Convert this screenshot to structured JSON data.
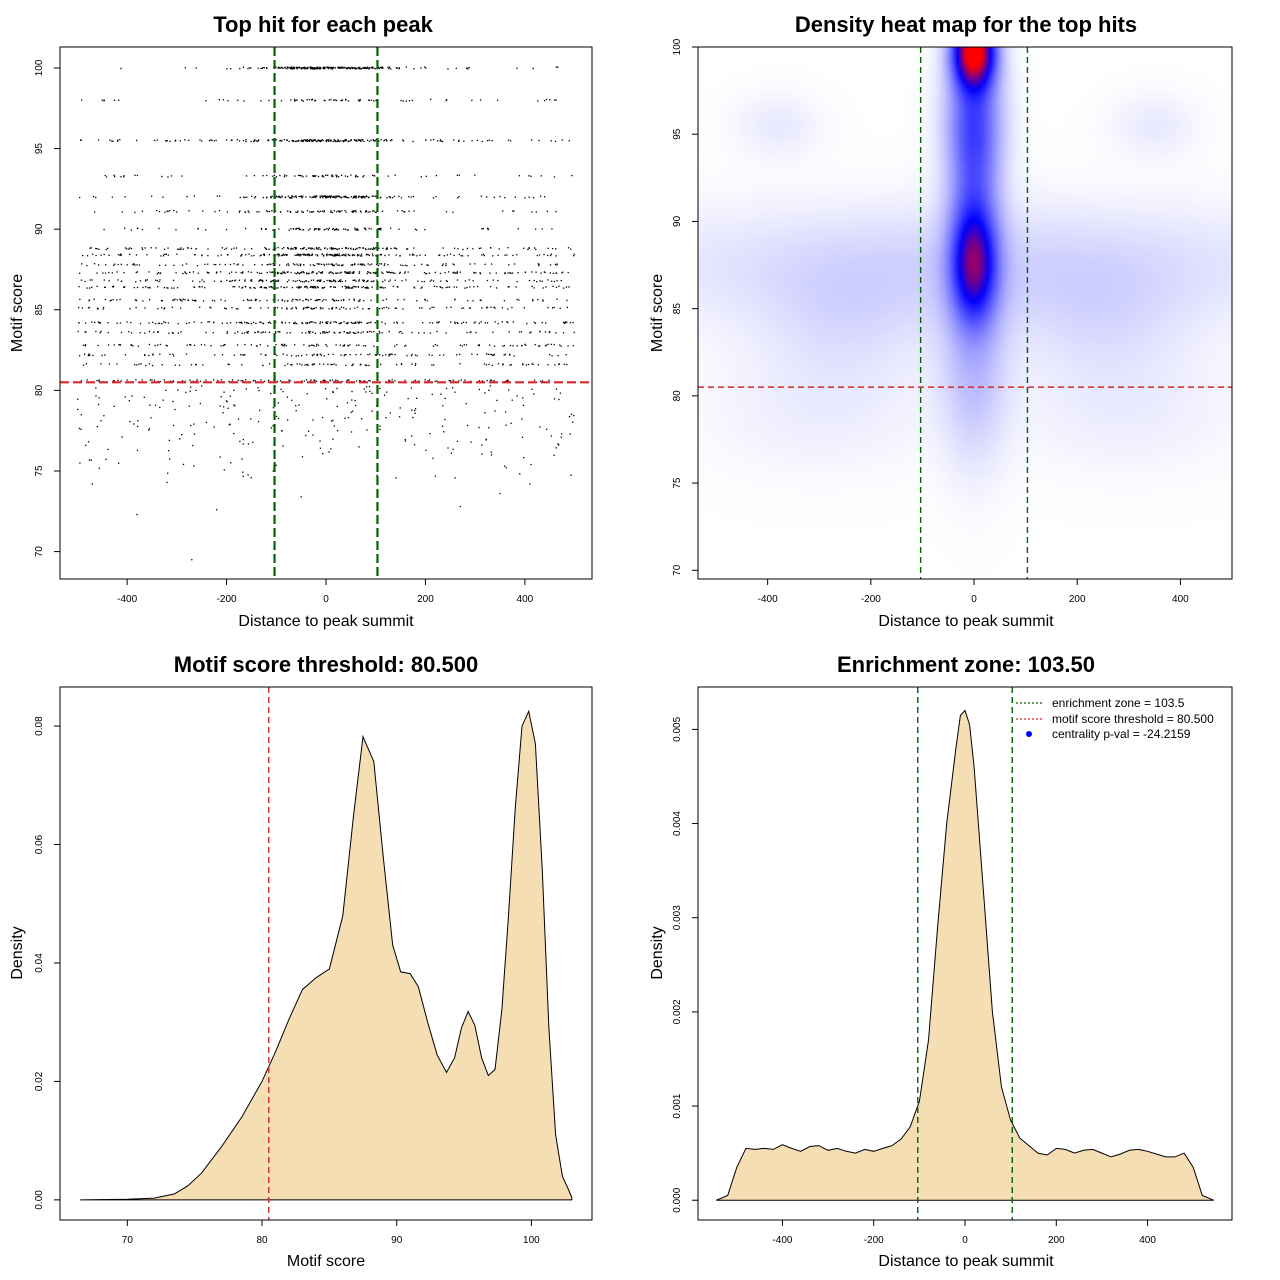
{
  "colors": {
    "threshold": "#d62728",
    "zone": "#006400",
    "fill": "#f5deb3",
    "points": "#000000",
    "pval_dot": "#0000ff"
  },
  "chart_data": [
    {
      "id": "top-hits",
      "type": "scatter",
      "title": "Top hit for each peak",
      "xlabel": "Distance to peak summit",
      "ylabel": "Motif score",
      "xlim": [
        -535,
        535
      ],
      "ylim": [
        68.3,
        101.3
      ],
      "xticks": [
        -400,
        -200,
        0,
        200,
        400
      ],
      "yticks": [
        70,
        75,
        80,
        85,
        90,
        95,
        100
      ],
      "score_levels": [
        {
          "score": 100,
          "n": 230,
          "center": 0.9
        },
        {
          "score": 98.0,
          "n": 70,
          "center": 0.6
        },
        {
          "score": 95.5,
          "n": 210,
          "center": 0.7
        },
        {
          "score": 93.3,
          "n": 80,
          "center": 0.6
        },
        {
          "score": 92.0,
          "n": 180,
          "center": 0.8
        },
        {
          "score": 91.1,
          "n": 100,
          "center": 0.5
        },
        {
          "score": 90.0,
          "n": 90,
          "center": 0.7
        },
        {
          "score": 88.8,
          "n": 160,
          "center": 0.5
        },
        {
          "score": 88.4,
          "n": 190,
          "center": 0.5
        },
        {
          "score": 87.8,
          "n": 130,
          "center": 0.4
        },
        {
          "score": 87.3,
          "n": 180,
          "center": 0.4
        },
        {
          "score": 86.8,
          "n": 150,
          "center": 0.4
        },
        {
          "score": 86.4,
          "n": 170,
          "center": 0.4
        },
        {
          "score": 85.6,
          "n": 120,
          "center": 0.3
        },
        {
          "score": 85.1,
          "n": 110,
          "center": 0.3
        },
        {
          "score": 84.2,
          "n": 160,
          "center": 0.3
        },
        {
          "score": 83.6,
          "n": 120,
          "center": 0.3
        },
        {
          "score": 82.8,
          "n": 110,
          "center": 0.2
        },
        {
          "score": 82.2,
          "n": 100,
          "center": 0.2
        },
        {
          "score": 81.6,
          "n": 90,
          "center": 0.2
        },
        {
          "score": 80.6,
          "n": 120,
          "center": 0.2
        }
      ],
      "scattered_below_threshold": {
        "n": 260,
        "score_range": [
          74.5,
          80.3
        ]
      },
      "outliers": [
        [
          -470,
          74.2
        ],
        [
          -380,
          72.3
        ],
        [
          -270,
          69.5
        ],
        [
          -220,
          72.6
        ],
        [
          -320,
          74.3
        ],
        [
          -50,
          73.4
        ],
        [
          270,
          72.8
        ],
        [
          350,
          73.6
        ],
        [
          410,
          74.2
        ],
        [
          -495,
          75.5
        ]
      ],
      "hlines": [
        {
          "y": 80.5,
          "role": "threshold"
        }
      ],
      "vlines": [
        {
          "x": -103.5,
          "role": "zone"
        },
        {
          "x": 103.5,
          "role": "zone"
        }
      ]
    },
    {
      "id": "heatmap",
      "type": "heatmap",
      "title": "Density heat map for the top hits",
      "xlabel": "Distance to peak summit",
      "ylabel": "Motif score",
      "xlim": [
        -535,
        500
      ],
      "ylim": [
        69.5,
        100.0
      ],
      "xticks": [
        -400,
        -200,
        0,
        200,
        400
      ],
      "yticks": [
        70,
        75,
        80,
        85,
        90,
        95,
        100
      ],
      "hotspots": [
        {
          "x": 0,
          "y": 99.8,
          "sx": 28,
          "sy": 1.4,
          "w": 1.0
        },
        {
          "x": 0,
          "y": 87.5,
          "sx": 30,
          "sy": 2.2,
          "w": 0.55
        },
        {
          "x": 0,
          "y": 92.5,
          "sx": 35,
          "sy": 4.0,
          "w": 0.28
        },
        {
          "x": 0,
          "y": 96.0,
          "sx": 40,
          "sy": 2.5,
          "w": 0.25
        },
        {
          "x": 0,
          "y": 82.0,
          "sx": 45,
          "sy": 4.0,
          "w": 0.15
        },
        {
          "x": 0,
          "y": 87.5,
          "sx": 500,
          "sy": 2.5,
          "w": 0.1
        },
        {
          "x": -380,
          "y": 95.5,
          "sx": 60,
          "sy": 1.3,
          "w": 0.05
        },
        {
          "x": 350,
          "y": 95.5,
          "sx": 60,
          "sy": 1.3,
          "w": 0.05
        },
        {
          "x": -250,
          "y": 84.0,
          "sx": 120,
          "sy": 2.5,
          "w": 0.06
        },
        {
          "x": 250,
          "y": 84.0,
          "sx": 120,
          "sy": 2.5,
          "w": 0.06
        },
        {
          "x": -300,
          "y": 79.0,
          "sx": 160,
          "sy": 2.5,
          "w": 0.04
        },
        {
          "x": 300,
          "y": 79.0,
          "sx": 160,
          "sy": 2.5,
          "w": 0.04
        }
      ],
      "hlines": [
        {
          "y": 80.5,
          "role": "threshold"
        }
      ],
      "vlines": [
        {
          "x": -103.5,
          "role": "zone"
        },
        {
          "x": 103.5,
          "role": "zone"
        }
      ]
    },
    {
      "id": "score-density",
      "type": "area",
      "title": "Motif score threshold: 80.500",
      "xlabel": "Motif score",
      "ylabel": "Density",
      "xlim": [
        65.0,
        104.5
      ],
      "ylim": [
        -0.0034,
        0.0866
      ],
      "xticks": [
        70,
        80,
        90,
        100
      ],
      "yticks": [
        0.0,
        0.02,
        0.04,
        0.06,
        0.08
      ],
      "ytick_labels": [
        "0.00",
        "0.02",
        "0.04",
        "0.06",
        "0.08"
      ],
      "x": [
        66.5,
        70,
        72,
        73.5,
        74.5,
        75.5,
        77,
        78.5,
        80,
        81,
        82,
        83,
        84,
        85,
        86,
        86.8,
        87.5,
        88.3,
        89,
        89.7,
        90.3,
        91,
        91.6,
        92.3,
        93,
        93.7,
        94.3,
        94.8,
        95.3,
        95.8,
        96.3,
        96.8,
        97.3,
        97.8,
        98.3,
        98.8,
        99.3,
        99.8,
        100.3,
        100.8,
        101.3,
        101.8,
        102.3,
        102.8,
        103.0
      ],
      "y": [
        0,
        0.0001,
        0.0003,
        0.001,
        0.0024,
        0.0045,
        0.009,
        0.014,
        0.02,
        0.025,
        0.0305,
        0.0355,
        0.0375,
        0.039,
        0.048,
        0.065,
        0.0782,
        0.074,
        0.058,
        0.043,
        0.0385,
        0.0382,
        0.036,
        0.03,
        0.0245,
        0.0215,
        0.024,
        0.029,
        0.0318,
        0.0295,
        0.024,
        0.021,
        0.022,
        0.032,
        0.048,
        0.066,
        0.08,
        0.0825,
        0.077,
        0.056,
        0.029,
        0.011,
        0.004,
        0.0015,
        0.0004
      ],
      "vlines": [
        {
          "x": 80.5,
          "role": "threshold"
        }
      ]
    },
    {
      "id": "distance-density",
      "type": "area",
      "title": "Enrichment zone: 103.50",
      "xlabel": "Distance to peak summit",
      "ylabel": "Density",
      "xlim": [
        -585,
        585
      ],
      "ylim": [
        -0.00021,
        0.00545
      ],
      "xticks": [
        -400,
        -200,
        0,
        200,
        400
      ],
      "yticks": [
        0,
        0.001,
        0.002,
        0.003,
        0.004,
        0.005
      ],
      "ytick_labels": [
        "0.000",
        "0.001",
        "0.002",
        "0.003",
        "0.004",
        "0.005"
      ],
      "x": [
        -545,
        -520,
        -500,
        -480,
        -460,
        -440,
        -420,
        -400,
        -380,
        -360,
        -340,
        -320,
        -300,
        -280,
        -260,
        -240,
        -220,
        -200,
        -180,
        -160,
        -140,
        -120,
        -100,
        -80,
        -60,
        -40,
        -20,
        -10,
        0,
        10,
        20,
        40,
        60,
        80,
        100,
        120,
        140,
        160,
        180,
        200,
        220,
        240,
        260,
        280,
        300,
        320,
        340,
        360,
        380,
        400,
        420,
        440,
        460,
        480,
        500,
        520,
        545
      ],
      "y": [
        0,
        5e-05,
        0.00035,
        0.00055,
        0.00054,
        0.00055,
        0.00054,
        0.00059,
        0.00055,
        0.00052,
        0.00057,
        0.00058,
        0.00053,
        0.00055,
        0.00052,
        0.0005,
        0.00054,
        0.00052,
        0.00055,
        0.00058,
        0.00065,
        0.00078,
        0.00105,
        0.0017,
        0.0029,
        0.004,
        0.0048,
        0.00515,
        0.0052,
        0.00505,
        0.0046,
        0.0033,
        0.002,
        0.0012,
        0.00085,
        0.00066,
        0.00058,
        0.0005,
        0.00048,
        0.00055,
        0.00054,
        0.0005,
        0.00053,
        0.00054,
        0.0005,
        0.00046,
        0.00049,
        0.00053,
        0.00054,
        0.00052,
        0.00049,
        0.00046,
        0.00046,
        0.0005,
        0.00035,
        5e-05,
        0
      ],
      "vlines": [
        {
          "x": -103.5,
          "role": "zone"
        },
        {
          "x": 103.5,
          "role": "zone"
        }
      ],
      "legend": {
        "position": "top-right",
        "entries": [
          {
            "label": "enrichment zone = 103.5",
            "style": "dotted-line",
            "role": "zone"
          },
          {
            "label": "motif score threshold = 80.500",
            "style": "dotted-line",
            "role": "threshold"
          },
          {
            "label": "centrality p-val = -24.2159",
            "style": "dot",
            "role": "pval_dot"
          }
        ]
      }
    }
  ]
}
